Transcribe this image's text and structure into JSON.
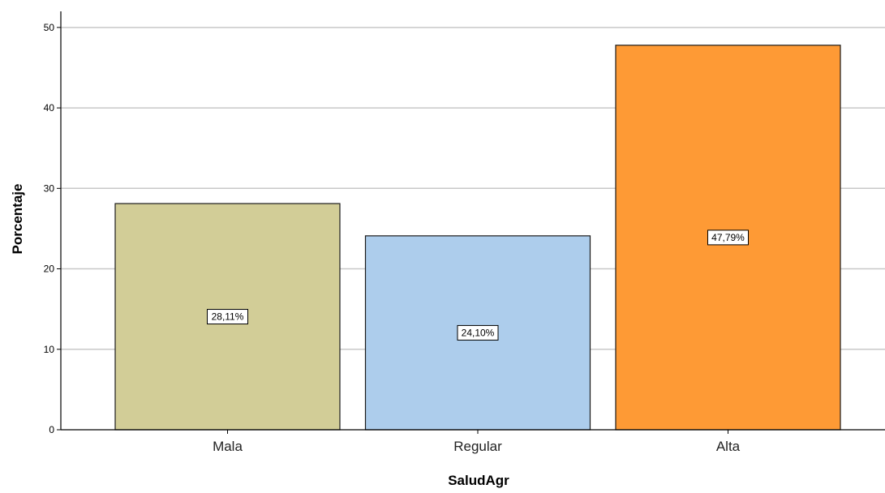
{
  "chart_data": {
    "type": "bar",
    "title": "",
    "xlabel": "SaludAgr",
    "ylabel": "Porcentaje",
    "categories": [
      "Mala",
      "Regular",
      "Alta"
    ],
    "values": [
      28.11,
      24.1,
      47.79
    ],
    "data_labels": [
      "28,11%",
      "24,10%",
      "47,79%"
    ],
    "colors": [
      "#d2cd97",
      "#adcdec",
      "#fe9a35"
    ],
    "ylim": [
      0,
      52
    ],
    "yticks": [
      0,
      10,
      20,
      30,
      40,
      50
    ],
    "ytick_labels": [
      "0",
      "10",
      "20",
      "30",
      "40",
      "50"
    ],
    "grid": true,
    "legend": "none"
  }
}
